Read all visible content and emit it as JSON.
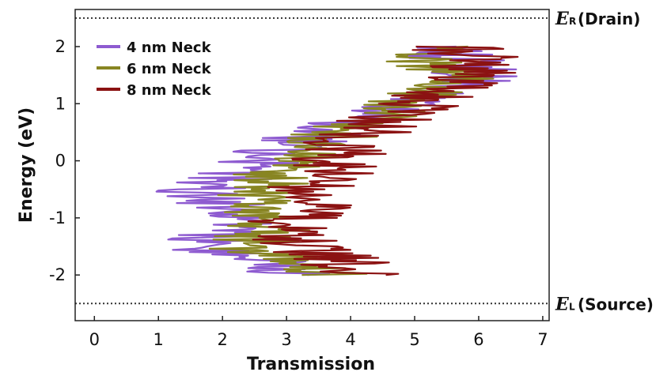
{
  "chart_data": {
    "type": "line",
    "title": "",
    "xlabel": "Transmission",
    "ylabel": "Energy (eV)",
    "xlim": [
      -0.3,
      7.1
    ],
    "ylim": [
      -2.8,
      2.65
    ],
    "xticks": [
      "0",
      "1",
      "2",
      "3",
      "4",
      "5",
      "6",
      "7"
    ],
    "yticks": [
      "-2",
      "-1",
      "0",
      "1",
      "2"
    ],
    "grid": false,
    "legend": "top-left",
    "energy_range": [
      -2.0,
      2.0
    ],
    "series": [
      {
        "name": "4 nm Neck",
        "color": "#8e5bd0",
        "energy": [
          -2.0,
          -1.75,
          -1.5,
          -1.25,
          -1.0,
          -0.75,
          -0.5,
          -0.25,
          0.0,
          0.25,
          0.5,
          0.75,
          1.0,
          1.25,
          1.5,
          1.75,
          2.0
        ],
        "transmission": [
          3.1,
          2.6,
          1.7,
          2.0,
          2.3,
          2.0,
          1.6,
          2.2,
          2.6,
          3.0,
          3.6,
          4.2,
          4.8,
          5.6,
          6.0,
          5.7,
          5.3
        ]
      },
      {
        "name": "6 nm Neck",
        "color": "#888522",
        "energy": [
          -2.0,
          -1.75,
          -1.5,
          -1.25,
          -1.0,
          -0.75,
          -0.5,
          -0.25,
          0.0,
          0.25,
          0.5,
          0.75,
          1.0,
          1.25,
          1.5,
          1.75,
          2.0
        ],
        "transmission": [
          3.8,
          3.2,
          2.4,
          2.7,
          2.8,
          2.6,
          2.5,
          2.9,
          3.1,
          3.4,
          3.9,
          4.4,
          4.9,
          5.3,
          5.6,
          5.2,
          5.2
        ]
      },
      {
        "name": "8 nm Neck",
        "color": "#8b1212",
        "energy": [
          -2.0,
          -1.75,
          -1.5,
          -1.25,
          -1.0,
          -0.75,
          -0.5,
          -0.25,
          0.0,
          0.25,
          0.5,
          0.75,
          1.0,
          1.25,
          1.5,
          1.75,
          2.0
        ],
        "transmission": [
          4.4,
          3.8,
          3.3,
          3.0,
          3.1,
          3.3,
          3.4,
          3.6,
          3.8,
          3.9,
          4.2,
          4.6,
          5.0,
          5.4,
          5.8,
          6.0,
          5.6
        ]
      }
    ],
    "reference_levels": [
      {
        "energy": 2.5,
        "symbol": "E",
        "subscript": "R",
        "label": "(Drain)"
      },
      {
        "energy": -2.5,
        "symbol": "E",
        "subscript": "L",
        "label": "(Source)"
      }
    ]
  }
}
